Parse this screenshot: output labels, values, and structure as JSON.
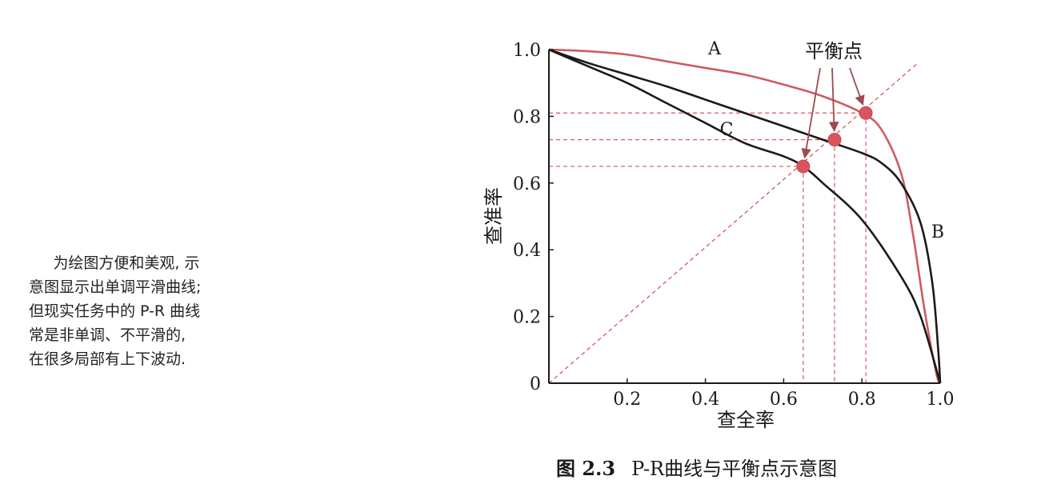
{
  "side_note": {
    "lines": [
      "为绘图方便和美观, 示",
      "意图显示出单调平滑曲线;",
      "但现实任务中的 P-R 曲线",
      "常是非单调、不平滑的,",
      "在很多局部有上下波动."
    ]
  },
  "caption": {
    "label": "图 2.3",
    "text": "P-R曲线与平衡点示意图"
  },
  "chart_data": {
    "type": "line",
    "xlabel": "查全率",
    "ylabel": "查准率",
    "xlim": [
      0,
      1
    ],
    "ylim": [
      0,
      1
    ],
    "x_ticks": [
      0.2,
      0.4,
      0.6,
      0.8,
      1.0
    ],
    "x_tick_labels": [
      "0.2",
      "0.4",
      "0.6",
      "0.8",
      "1.0"
    ],
    "y_ticks": [
      0,
      0.2,
      0.4,
      0.6,
      0.8,
      1.0
    ],
    "y_tick_labels": [
      "0",
      "0.2",
      "0.4",
      "0.6",
      "0.8",
      "1.0"
    ],
    "grid": false,
    "series": [
      {
        "name": "A",
        "color": "#d05a5e",
        "points": [
          [
            0,
            1.0
          ],
          [
            0.1,
            0.995
          ],
          [
            0.2,
            0.985
          ],
          [
            0.3,
            0.965
          ],
          [
            0.4,
            0.945
          ],
          [
            0.5,
            0.925
          ],
          [
            0.6,
            0.895
          ],
          [
            0.7,
            0.86
          ],
          [
            0.8,
            0.81
          ],
          [
            0.85,
            0.76
          ],
          [
            0.9,
            0.63
          ],
          [
            0.93,
            0.45
          ],
          [
            0.96,
            0.22
          ],
          [
            0.99,
            0.03
          ],
          [
            1.0,
            0
          ]
        ]
      },
      {
        "name": "B",
        "color": "#1a1a1a",
        "points": [
          [
            0,
            1.0
          ],
          [
            0.1,
            0.96
          ],
          [
            0.2,
            0.925
          ],
          [
            0.3,
            0.89
          ],
          [
            0.4,
            0.85
          ],
          [
            0.5,
            0.81
          ],
          [
            0.6,
            0.77
          ],
          [
            0.7,
            0.73
          ],
          [
            0.8,
            0.69
          ],
          [
            0.85,
            0.66
          ],
          [
            0.9,
            0.6
          ],
          [
            0.95,
            0.48
          ],
          [
            0.98,
            0.3
          ],
          [
            0.995,
            0.1
          ],
          [
            1.0,
            0
          ]
        ]
      },
      {
        "name": "C",
        "color": "#1a1a1a",
        "points": [
          [
            0,
            1.0
          ],
          [
            0.1,
            0.95
          ],
          [
            0.2,
            0.9
          ],
          [
            0.3,
            0.84
          ],
          [
            0.4,
            0.78
          ],
          [
            0.5,
            0.72
          ],
          [
            0.6,
            0.68
          ],
          [
            0.65,
            0.65
          ],
          [
            0.7,
            0.6
          ],
          [
            0.8,
            0.49
          ],
          [
            0.9,
            0.32
          ],
          [
            0.95,
            0.2
          ],
          [
            1.0,
            0
          ]
        ]
      }
    ],
    "diagonal": {
      "color": "#d05a5e",
      "from": [
        0,
        0
      ],
      "to": [
        1.0,
        1.0
      ]
    },
    "break_even_points": [
      {
        "x": 0.81,
        "y": 0.81,
        "color": "#d9545c"
      },
      {
        "x": 0.73,
        "y": 0.73,
        "color": "#d9545c"
      },
      {
        "x": 0.65,
        "y": 0.65,
        "color": "#d9545c"
      }
    ],
    "annotation": {
      "text": "平衡点",
      "arrow_color": "#9b4a50"
    },
    "series_labels": [
      "A",
      "B",
      "C"
    ]
  }
}
